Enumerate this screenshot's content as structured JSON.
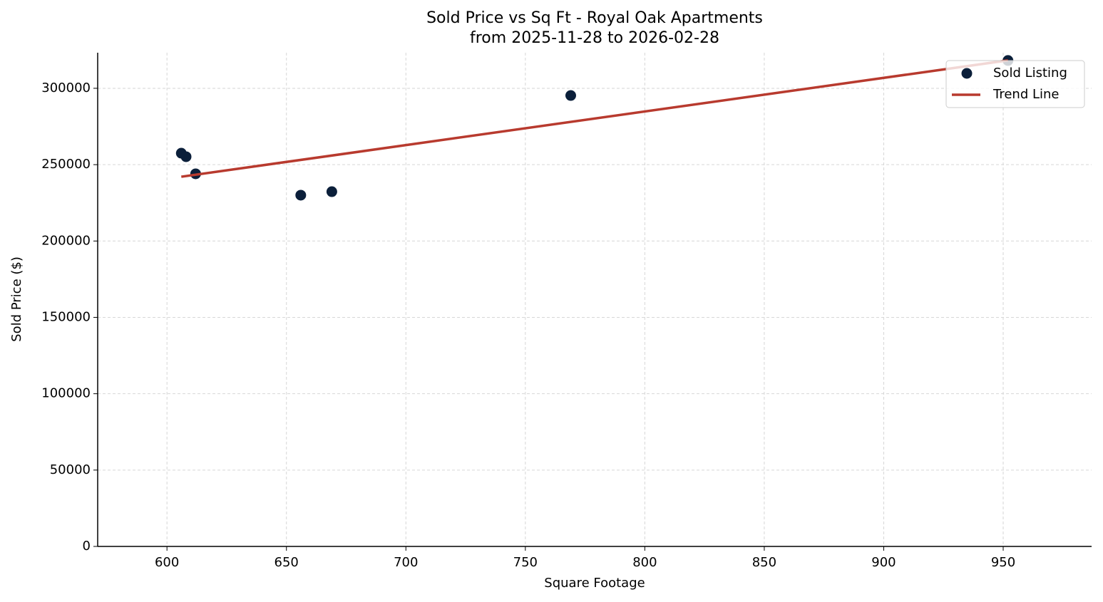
{
  "chart_data": {
    "type": "scatter",
    "title": "Sold Price vs Sq Ft - Royal Oak Apartments",
    "subtitle": "from 2025-11-28 to 2026-02-28",
    "x_label": "Square Footage",
    "y_label": "Sold Price ($)",
    "xlim": [
      571,
      987
    ],
    "xticks": [
      600,
      650,
      700,
      750,
      800,
      850,
      900,
      950
    ],
    "ylim": [
      0,
      323300
    ],
    "yticks": [
      0,
      50000,
      100000,
      150000,
      200000,
      250000,
      300000
    ],
    "grid": true,
    "legend": "upper-right",
    "series": [
      {
        "name": "Sold Listing",
        "color": "#0b1f3a",
        "style": "points",
        "x": [
          606,
          608,
          612,
          656,
          669,
          769,
          952
        ],
        "values": [
          257500,
          255200,
          244000,
          230000,
          232300,
          295300,
          318200
        ]
      },
      {
        "name": "Trend Line",
        "color": "#b83a2e",
        "style": "line",
        "x": [
          606,
          952
        ],
        "values": [
          242100,
          318300
        ]
      }
    ]
  }
}
